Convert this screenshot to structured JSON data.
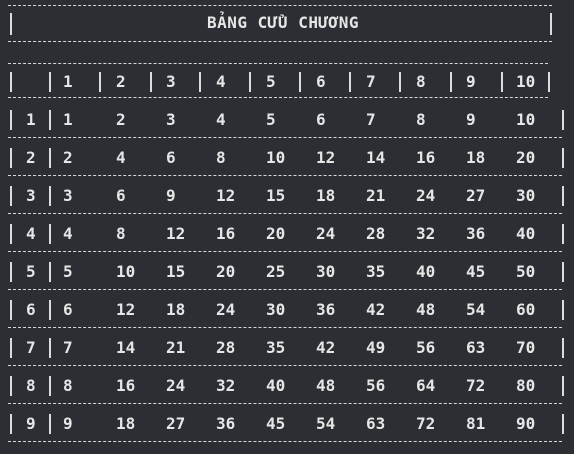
{
  "title": "BẢNG CỬU CHƯƠNG",
  "header": [
    "1",
    "2",
    "3",
    "4",
    "5",
    "6",
    "7",
    "8",
    "9",
    "10"
  ],
  "rows": [
    {
      "label": "1",
      "values": [
        "1",
        "2",
        "3",
        "4",
        "5",
        "6",
        "7",
        "8",
        "9",
        "10"
      ]
    },
    {
      "label": "2",
      "values": [
        "2",
        "4",
        "6",
        "8",
        "10",
        "12",
        "14",
        "16",
        "18",
        "20"
      ]
    },
    {
      "label": "3",
      "values": [
        "3",
        "6",
        "9",
        "12",
        "15",
        "18",
        "21",
        "24",
        "27",
        "30"
      ]
    },
    {
      "label": "4",
      "values": [
        "4",
        "8",
        "12",
        "16",
        "20",
        "24",
        "28",
        "32",
        "36",
        "40"
      ]
    },
    {
      "label": "5",
      "values": [
        "5",
        "10",
        "15",
        "20",
        "25",
        "30",
        "35",
        "40",
        "45",
        "50"
      ]
    },
    {
      "label": "6",
      "values": [
        "6",
        "12",
        "18",
        "24",
        "30",
        "36",
        "42",
        "48",
        "54",
        "60"
      ]
    },
    {
      "label": "7",
      "values": [
        "7",
        "14",
        "21",
        "28",
        "35",
        "42",
        "49",
        "56",
        "63",
        "70"
      ]
    },
    {
      "label": "8",
      "values": [
        "8",
        "16",
        "24",
        "32",
        "40",
        "48",
        "56",
        "64",
        "72",
        "80"
      ]
    },
    {
      "label": "9",
      "values": [
        "9",
        "18",
        "27",
        "36",
        "45",
        "54",
        "63",
        "72",
        "81",
        "90"
      ]
    }
  ]
}
